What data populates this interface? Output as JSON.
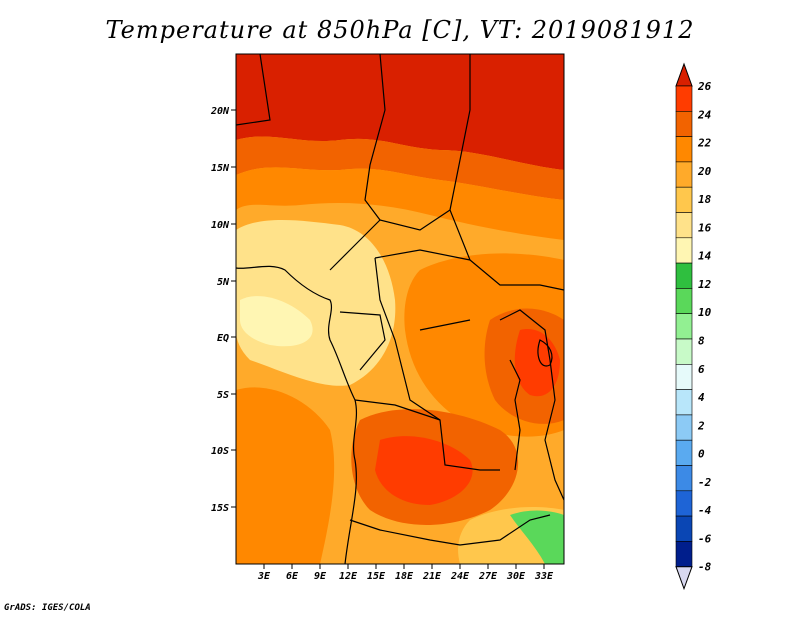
{
  "title": "Temperature at 850hPa [C], VT: 2019081912",
  "footer": "GrADS: IGES/COLA",
  "map": {
    "projection": "latlon",
    "lat_ticks": [
      "20N",
      "15N",
      "10N",
      "5N",
      "EQ",
      "5S",
      "10S",
      "15S"
    ],
    "lon_ticks": [
      "3E",
      "6E",
      "9E",
      "12E",
      "15E",
      "18E",
      "21E",
      "24E",
      "27E",
      "30E",
      "33E"
    ]
  },
  "colorbar": {
    "labels": [
      "26",
      "24",
      "22",
      "20",
      "18",
      "16",
      "14",
      "12",
      "10",
      "8",
      "6",
      "4",
      "2",
      "0",
      "-2",
      "-4",
      "-6",
      "-8"
    ],
    "colors": [
      "#d92000",
      "#ff3c00",
      "#f26300",
      "#ff8800",
      "#ffaa2a",
      "#ffc74c",
      "#ffe28a",
      "#fff6b3",
      "#2fbf3f",
      "#5ad85a",
      "#92f092",
      "#c8fac8",
      "#e6fafa",
      "#b8e6fa",
      "#8ccaf5",
      "#5aaaf0",
      "#3c8ae6",
      "#1e64d6",
      "#0a46b4",
      "#001e8c",
      "#000064"
    ]
  }
}
